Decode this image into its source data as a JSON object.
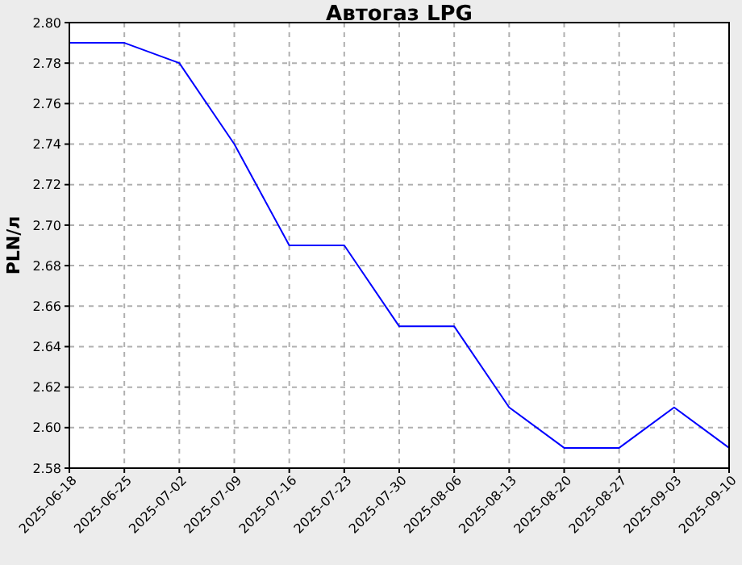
{
  "chart_data": {
    "type": "line",
    "title": "Автогаз LPG",
    "ylabel": "PLN/л",
    "categories": [
      "2025-06-18",
      "2025-06-25",
      "2025-07-02",
      "2025-07-09",
      "2025-07-16",
      "2025-07-23",
      "2025-07-30",
      "2025-08-06",
      "2025-08-13",
      "2025-08-20",
      "2025-08-27",
      "2025-09-03",
      "2025-09-10"
    ],
    "series": [
      {
        "color": "#0000ff",
        "values": [
          2.79,
          2.79,
          2.78,
          2.74,
          2.69,
          2.69,
          2.65,
          2.65,
          2.61,
          2.59,
          2.59,
          2.61,
          2.59
        ]
      }
    ],
    "ylim": [
      2.58,
      2.8
    ],
    "yticks": [
      {
        "value": 2.58,
        "label": "2.58"
      },
      {
        "value": 2.6,
        "label": "2.60"
      },
      {
        "value": 2.62,
        "label": "2.62"
      },
      {
        "value": 2.64,
        "label": "2.64"
      },
      {
        "value": 2.66,
        "label": "2.66"
      },
      {
        "value": 2.68,
        "label": "2.68"
      },
      {
        "value": 2.7,
        "label": "2.70"
      },
      {
        "value": 2.72,
        "label": "2.72"
      },
      {
        "value": 2.74,
        "label": "2.74"
      },
      {
        "value": 2.76,
        "label": "2.76"
      },
      {
        "value": 2.78,
        "label": "2.78"
      },
      {
        "value": 2.8,
        "label": "2.80"
      }
    ],
    "grid": true,
    "marker": "none",
    "line_style": "solid"
  }
}
